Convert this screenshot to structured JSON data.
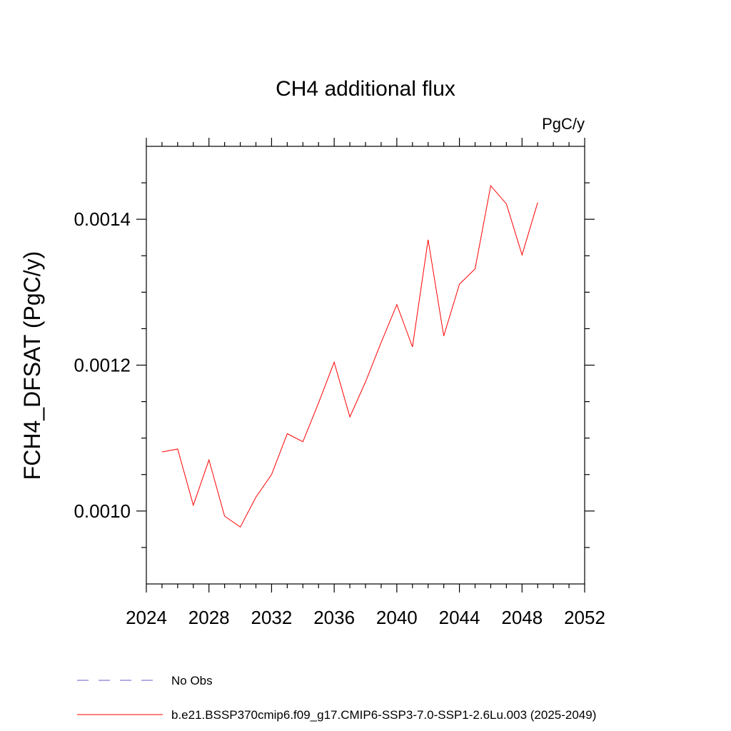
{
  "chart_data": {
    "type": "line",
    "title": "CH4 additional flux",
    "units": "PgC/y",
    "ylabel": "FCH4_DFSAT  (PgC/y)",
    "xlabel": "",
    "xlim": [
      2024,
      2052
    ],
    "ylim": [
      0.0009,
      0.0015
    ],
    "x_ticks": [
      2024,
      2028,
      2032,
      2036,
      2040,
      2044,
      2048,
      2052
    ],
    "x_tick_labels": [
      "2024",
      "2028",
      "2032",
      "2036",
      "2040",
      "2044",
      "2048",
      "2052"
    ],
    "y_ticks": [
      0.001,
      0.0012,
      0.0014
    ],
    "y_tick_labels": [
      "0.0010",
      "0.0012",
      "0.0014"
    ],
    "grid": false,
    "legend_position": "bottom",
    "series": [
      {
        "name": "No Obs",
        "color": "#6a5acd",
        "style": "dashed",
        "x": [],
        "values": []
      },
      {
        "name": "b.e21.BSSP370cmip6.f09_g17.CMIP6-SSP3-7.0-SSP1-2.6Lu.003 (2025-2049)",
        "color": "#ff0000",
        "style": "solid",
        "x": [
          2025,
          2026,
          2027,
          2028,
          2029,
          2030,
          2031,
          2032,
          2033,
          2034,
          2035,
          2036,
          2037,
          2038,
          2039,
          2040,
          2041,
          2042,
          2043,
          2044,
          2045,
          2046,
          2047,
          2048,
          2049
        ],
        "values": [
          0.001081,
          0.001085,
          0.001008,
          0.00107,
          0.000993,
          0.000978,
          0.001019,
          0.00105,
          0.001106,
          0.001095,
          0.001148,
          0.001204,
          0.001129,
          0.001177,
          0.001231,
          0.001283,
          0.001225,
          0.001372,
          0.00124,
          0.001311,
          0.001332,
          0.001446,
          0.001421,
          0.001351,
          0.001423
        ]
      }
    ]
  }
}
